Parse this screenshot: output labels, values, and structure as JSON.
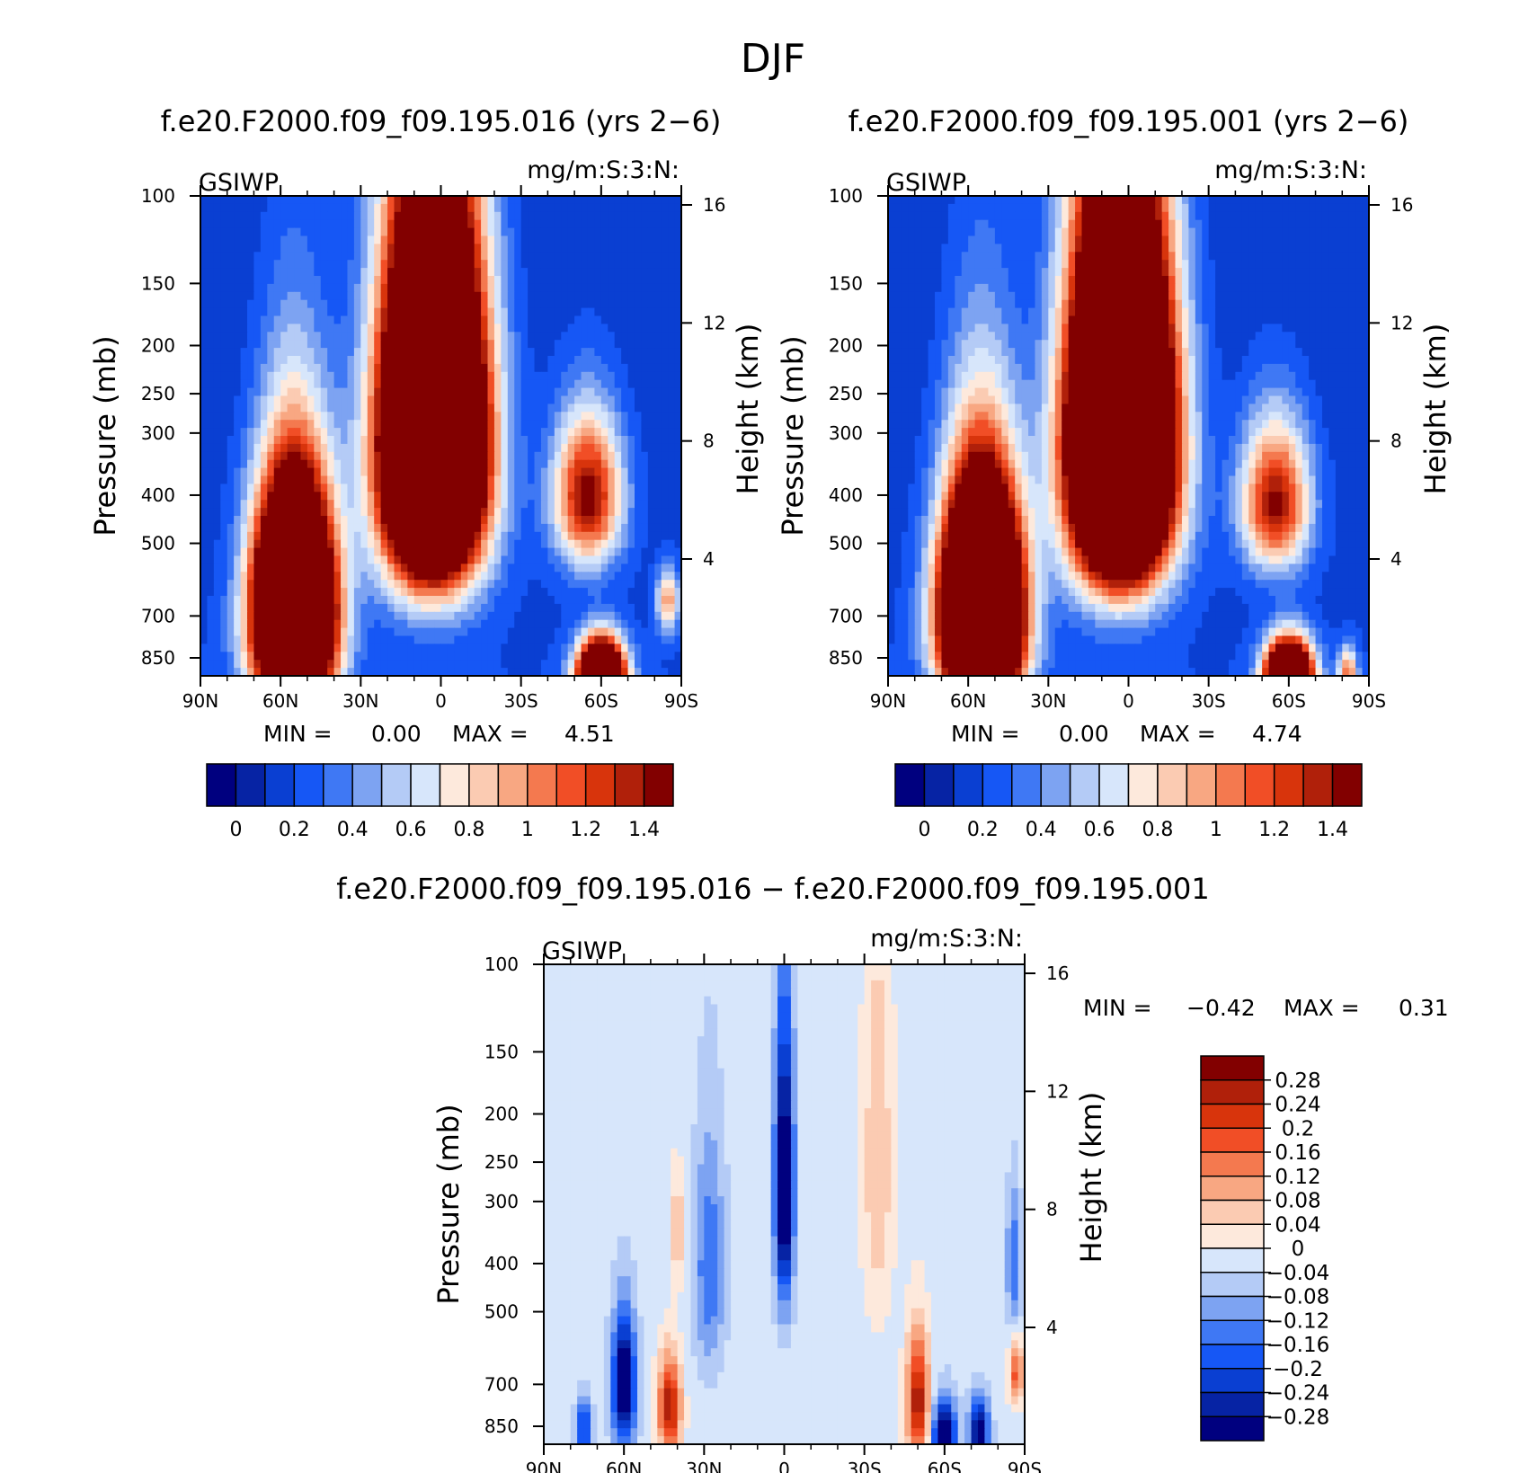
{
  "page_title": "DJF",
  "colormap": [
    "#00007f",
    "#0623a4",
    "#0a3fd2",
    "#1657f5",
    "#3f78f4",
    "#7da3f2",
    "#b4cbf6",
    "#d7e6fb",
    "#fde9dc",
    "#fbcbb2",
    "#f8a782",
    "#f4794f",
    "#f14e26",
    "#d8340c",
    "#b0200a",
    "#820000"
  ],
  "chart_data": [
    {
      "id": "left",
      "type": "heatmap",
      "title": "f.e20.F2000.f09_f09.195.016 (yrs 2−6)",
      "var_label": "GSIWP",
      "units_label": "mg/m:S:3:N:",
      "ylabel": "Pressure (mb)",
      "y2label": "Height (km)",
      "x_ticks": [
        "90N",
        "60N",
        "30N",
        "0",
        "30S",
        "60S",
        "90S"
      ],
      "y_ticks": [
        "100",
        "150",
        "200",
        "250",
        "300",
        "400",
        "500",
        "700",
        "850"
      ],
      "y2_ticks": [
        "16",
        "12",
        "8",
        "4"
      ],
      "ylim": [
        100,
        850
      ],
      "min_label": "MIN =",
      "min_value": "0.00",
      "max_label": "MAX =",
      "max_value": "4.51",
      "min": 0.0,
      "max": 4.51,
      "colorbar_levels": [
        "0",
        "0.2",
        "0.4",
        "0.6",
        "0.8",
        "1",
        "1.2",
        "1.4"
      ],
      "features": [
        {
          "lat": 55,
          "p": 640,
          "amp": 4.2,
          "wx": 10,
          "wy": 210
        },
        {
          "lat": 3,
          "p": 300,
          "amp": 4.5,
          "wx": 13,
          "wy": 160
        },
        {
          "lat": -55,
          "p": 380,
          "amp": 1.35,
          "wx": 9,
          "wy": 90
        },
        {
          "lat": -60,
          "p": 850,
          "amp": 3.2,
          "wx": 6,
          "wy": 90
        },
        {
          "lat": -85,
          "p": 610,
          "amp": 0.8,
          "wx": 3,
          "wy": 60
        }
      ]
    },
    {
      "id": "right",
      "type": "heatmap",
      "title": "f.e20.F2000.f09_f09.195.001 (yrs 2−6)",
      "var_label": "GSIWP",
      "units_label": "mg/m:S:3:N:",
      "ylabel": "Pressure (mb)",
      "y2label": "Height (km)",
      "x_ticks": [
        "90N",
        "60N",
        "30N",
        "0",
        "30S",
        "60S",
        "90S"
      ],
      "y_ticks": [
        "100",
        "150",
        "200",
        "250",
        "300",
        "400",
        "500",
        "700",
        "850"
      ],
      "y2_ticks": [
        "16",
        "12",
        "8",
        "4"
      ],
      "ylim": [
        100,
        850
      ],
      "min_label": "MIN =",
      "min_value": "0.00",
      "max_label": "MAX =",
      "max_value": "4.74",
      "min": 0.0,
      "max": 4.74,
      "colorbar_levels": [
        "0",
        "0.2",
        "0.4",
        "0.6",
        "0.8",
        "1",
        "1.2",
        "1.4"
      ],
      "features": [
        {
          "lat": 55,
          "p": 640,
          "amp": 4.4,
          "wx": 10,
          "wy": 210
        },
        {
          "lat": 3,
          "p": 300,
          "amp": 4.7,
          "wx": 13,
          "wy": 160
        },
        {
          "lat": -55,
          "p": 390,
          "amp": 1.3,
          "wx": 9,
          "wy": 90
        },
        {
          "lat": -60,
          "p": 850,
          "amp": 3.0,
          "wx": 6,
          "wy": 90
        },
        {
          "lat": -82,
          "p": 830,
          "amp": 0.9,
          "wx": 2.5,
          "wy": 60
        }
      ]
    },
    {
      "id": "diff",
      "type": "heatmap",
      "title": "f.e20.F2000.f09_f09.195.016 − f.e20.F2000.f09_f09.195.001",
      "var_label": "GSIWP",
      "units_label": "mg/m:S:3:N:",
      "ylabel": "Pressure (mb)",
      "y2label": "Height (km)",
      "x_ticks": [
        "90N",
        "60N",
        "30N",
        "0",
        "30S",
        "60S",
        "90S"
      ],
      "y_ticks": [
        "100",
        "150",
        "200",
        "250",
        "300",
        "400",
        "500",
        "700",
        "850"
      ],
      "y2_ticks": [
        "16",
        "12",
        "8",
        "4"
      ],
      "ylim": [
        100,
        850
      ],
      "min_label": "MIN =",
      "min_value": "−0.42",
      "max_label": "MAX =",
      "max_value": "0.31",
      "min": -0.42,
      "max": 0.31,
      "colorbar_levels": [
        "0.28",
        "0.24",
        "0.2",
        "0.16",
        "0.12",
        "0.08",
        "0.04",
        "0",
        "−0.04",
        "−0.08",
        "−0.12",
        "−0.16",
        "−0.2",
        "−0.24",
        "−0.28"
      ],
      "features": [
        {
          "lat": 60,
          "p": 650,
          "amp": -0.38,
          "wx": 3,
          "wy": 130
        },
        {
          "lat": 43,
          "p": 720,
          "amp": 0.3,
          "wx": 3,
          "wy": 110
        },
        {
          "lat": 75,
          "p": 790,
          "amp": -0.22,
          "wx": 2,
          "wy": 70
        },
        {
          "lat": 28,
          "p": 390,
          "amp": -0.14,
          "wx": 4,
          "wy": 140
        },
        {
          "lat": 40,
          "p": 330,
          "amp": 0.1,
          "wx": 2,
          "wy": 60
        },
        {
          "lat": 0,
          "p": 270,
          "amp": -0.36,
          "wx": 2.5,
          "wy": 120
        },
        {
          "lat": -35,
          "p": 250,
          "amp": 0.1,
          "wx": 4,
          "wy": 150
        },
        {
          "lat": -50,
          "p": 700,
          "amp": 0.3,
          "wx": 3,
          "wy": 140
        },
        {
          "lat": -60,
          "p": 820,
          "amp": -0.38,
          "wx": 3,
          "wy": 90
        },
        {
          "lat": -73,
          "p": 800,
          "amp": -0.32,
          "wx": 2.5,
          "wy": 80
        },
        {
          "lat": -87,
          "p": 620,
          "amp": 0.2,
          "wx": 2,
          "wy": 60
        },
        {
          "lat": -86,
          "p": 380,
          "amp": -0.14,
          "wx": 2,
          "wy": 80
        }
      ]
    }
  ]
}
